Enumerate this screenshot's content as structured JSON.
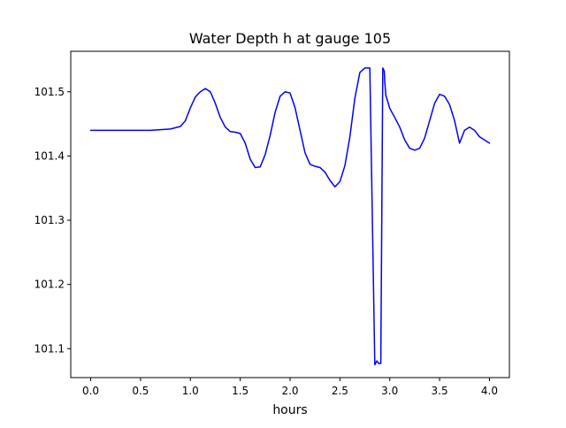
{
  "chart_data": {
    "type": "line",
    "title": "Water Depth h at gauge 105",
    "xlabel": "hours",
    "ylabel": "",
    "xlim": [
      -0.2,
      4.2
    ],
    "ylim": [
      101.055,
      101.563
    ],
    "x_ticks": [
      0.0,
      0.5,
      1.0,
      1.5,
      2.0,
      2.5,
      3.0,
      3.5,
      4.0
    ],
    "x_tick_labels": [
      "0.0",
      "0.5",
      "1.0",
      "1.5",
      "2.0",
      "2.5",
      "3.0",
      "3.5",
      "4.0"
    ],
    "y_ticks": [
      101.1,
      101.2,
      101.3,
      101.4,
      101.5
    ],
    "y_tick_labels": [
      "101.1",
      "101.2",
      "101.3",
      "101.4",
      "101.5"
    ],
    "grid": false,
    "legend": "none",
    "series": [
      {
        "color": "#0000ff",
        "x": [
          0.0,
          0.3,
          0.6,
          0.8,
          0.9,
          0.95,
          1.0,
          1.05,
          1.1,
          1.15,
          1.2,
          1.25,
          1.3,
          1.35,
          1.4,
          1.45,
          1.5,
          1.55,
          1.6,
          1.65,
          1.7,
          1.75,
          1.8,
          1.85,
          1.9,
          1.95,
          2.0,
          2.05,
          2.1,
          2.15,
          2.2,
          2.25,
          2.3,
          2.35,
          2.4,
          2.45,
          2.5,
          2.55,
          2.6,
          2.65,
          2.7,
          2.75,
          2.8,
          2.85,
          2.87,
          2.875,
          2.89,
          2.91,
          2.93,
          2.945,
          2.95,
          2.96,
          3.0,
          3.05,
          3.1,
          3.15,
          3.2,
          3.25,
          3.3,
          3.35,
          3.4,
          3.45,
          3.5,
          3.55,
          3.6,
          3.65,
          3.7,
          3.75,
          3.8,
          3.85,
          3.9,
          3.95,
          4.0
        ],
        "y": [
          101.44,
          101.44,
          101.44,
          101.442,
          101.446,
          101.455,
          101.475,
          101.492,
          101.5,
          101.505,
          101.5,
          101.482,
          101.46,
          101.445,
          101.438,
          101.437,
          101.435,
          101.42,
          101.395,
          101.382,
          101.383,
          101.402,
          101.432,
          101.468,
          101.493,
          101.5,
          101.498,
          101.475,
          101.44,
          101.405,
          101.387,
          101.384,
          101.382,
          101.375,
          101.362,
          101.352,
          101.36,
          101.385,
          101.43,
          101.49,
          101.53,
          101.537,
          101.537,
          101.075,
          101.081,
          101.08,
          101.077,
          101.077,
          101.537,
          101.532,
          101.515,
          101.495,
          101.474,
          101.46,
          101.445,
          101.425,
          101.412,
          101.409,
          101.412,
          101.428,
          101.455,
          101.482,
          101.496,
          101.493,
          101.48,
          101.455,
          101.42,
          101.44,
          101.445,
          101.44,
          101.43,
          101.425,
          101.42
        ]
      }
    ]
  }
}
